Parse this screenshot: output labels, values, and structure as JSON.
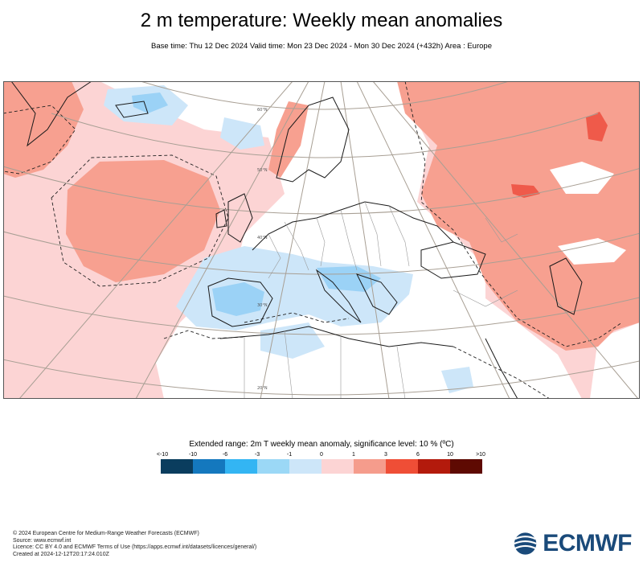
{
  "header": {
    "title": "2 m temperature: Weekly mean anomalies",
    "subtitle": "Base time: Thu 12 Dec 2024 Valid time: Mon 23 Dec 2024 - Mon 30 Dec 2024 (+432h) Area : Europe"
  },
  "map": {
    "colors": {
      "pink_light": "#fcd4d4",
      "pink_mid": "#f7a090",
      "red": "#ef5a4a",
      "blue_light": "#cde6f9",
      "blue_mid": "#9bd2f6",
      "white": "#ffffff"
    },
    "graticule_labels": [
      "60°N",
      "50°N",
      "40°N",
      "30°N",
      "20°N"
    ]
  },
  "legend": {
    "title": "Extended range: 2m T weekly mean anomaly, significance level: 10 % (ºC)",
    "labels": [
      "<-10",
      "-10",
      "-6",
      "-3",
      "-1",
      "0",
      "1",
      "3",
      "6",
      "10",
      ">10"
    ],
    "colors": [
      "#0a3d5e",
      "#1478be",
      "#33b5f3",
      "#9bd8f6",
      "#cde6f9",
      "#fcd4d4",
      "#f59c8c",
      "#ef4e36",
      "#b31a0c",
      "#5e0a02"
    ]
  },
  "footer": {
    "lines": [
      "© 2024 European Centre for Medium-Range Weather Forecasts (ECMWF)",
      "Source: www.ecmwf.int",
      "Licence: CC BY 4.0 and ECMWF Terms of Use (https://apps.ecmwf.int/datasets/licences/general/)",
      "Created at 2024-12-12T20:17:24.010Z"
    ]
  },
  "logo": {
    "text": "ECMWF",
    "color": "#1a4a7a"
  }
}
